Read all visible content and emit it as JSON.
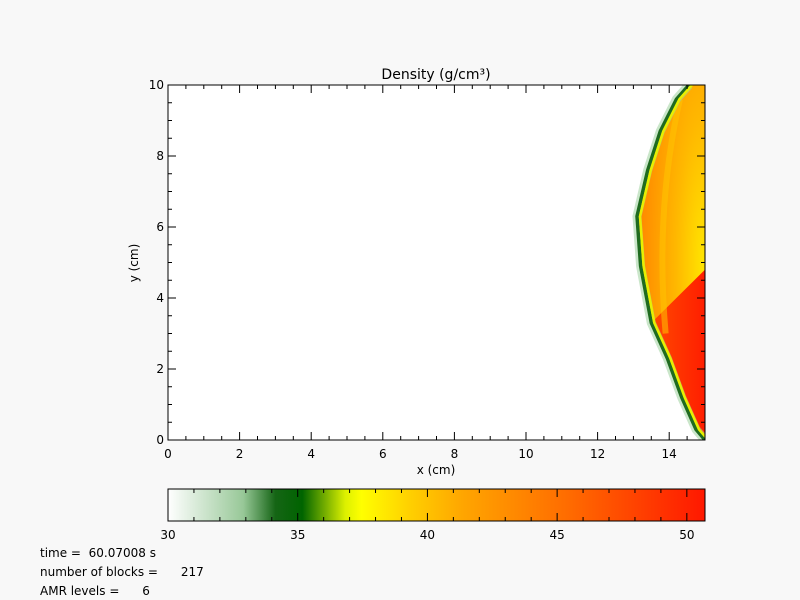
{
  "chart_data": {
    "type": "heatmap",
    "title": "Density (g/cm³)",
    "xlabel": "x (cm)",
    "ylabel": "y (cm)",
    "xlim": [
      0,
      15
    ],
    "ylim": [
      0,
      10
    ],
    "x_ticks": [
      "0",
      "2",
      "4",
      "6",
      "8",
      "10",
      "12",
      "14"
    ],
    "y_ticks": [
      "0",
      "2",
      "4",
      "6",
      "8",
      "10"
    ],
    "colorbar": {
      "range": [
        30,
        50.7
      ],
      "ticks": [
        "30",
        "35",
        "40",
        "45",
        "50"
      ],
      "colors": [
        "#ffffff",
        "#006400",
        "#ffff00",
        "#ffa500",
        "#ff0000"
      ]
    },
    "background_value": 30,
    "shock_front": {
      "points": [
        [
          14.55,
          10
        ],
        [
          14.2,
          9.6
        ],
        [
          13.75,
          8.7
        ],
        [
          13.4,
          7.6
        ],
        [
          13.1,
          6.3
        ],
        [
          13.2,
          4.9
        ],
        [
          13.5,
          3.3
        ],
        [
          13.95,
          2.3
        ],
        [
          14.35,
          1.2
        ],
        [
          14.75,
          0.3
        ],
        [
          15,
          0
        ]
      ],
      "edge_value": 34
    },
    "regions": [
      {
        "name": "upper shell",
        "value_range": [
          39,
          43
        ]
      },
      {
        "name": "lower wedge",
        "value_range": [
          47,
          50.7
        ]
      }
    ]
  },
  "info": {
    "time_label": "time = ",
    "time_value": "60.07008 s",
    "blocks_label": "number of blocks =",
    "blocks_value": "217",
    "amr_label": "AMR levels =",
    "amr_value": "6"
  }
}
